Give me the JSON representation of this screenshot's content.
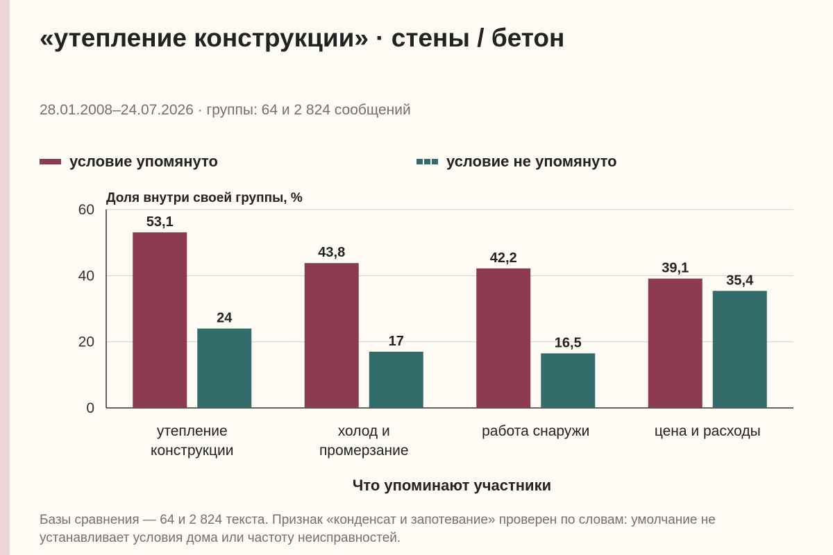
{
  "title": "«утепление конструкции» · стены / бетон",
  "subtitle": "28.01.2008–24.07.2026 · группы: 64 и 2 824 сообщений",
  "legend": [
    {
      "label": "условие упомянуто",
      "color": "#8b3a52"
    },
    {
      "label": "условие не упомянуто",
      "color": "#336b6b"
    }
  ],
  "footnote": "Базы сравнения — 64 и 2 824 текста. Признак «конденсат и запотевание» проверен по словам: умолчание не устанавливает условия дома или частоту неисправностей.",
  "chart_data": {
    "type": "bar",
    "title": "«утепление конструкции» · стены / бетон",
    "ylabel": "Доля внутри своей группы, %",
    "xlabel": "Что упоминают участники",
    "categories": [
      [
        "утепление",
        "конструкции"
      ],
      [
        "холод и",
        "промерзание"
      ],
      [
        "работа снаружи"
      ],
      [
        "цена и расходы"
      ]
    ],
    "series": [
      {
        "name": "условие упомянуто",
        "color": "#8b3a52",
        "values": [
          53.1,
          43.8,
          42.2,
          39.1
        ],
        "labels": [
          "53,1",
          "43,8",
          "42,2",
          "39,1"
        ]
      },
      {
        "name": "условие не упомянуто",
        "color": "#336b6b",
        "values": [
          24,
          17,
          16.5,
          35.4
        ],
        "labels": [
          "24",
          "17",
          "16,5",
          "35,4"
        ]
      }
    ],
    "ylim": [
      0,
      60
    ],
    "yticks": [
      0,
      20,
      40,
      60
    ],
    "grid": true,
    "legend_position": "top-left"
  }
}
